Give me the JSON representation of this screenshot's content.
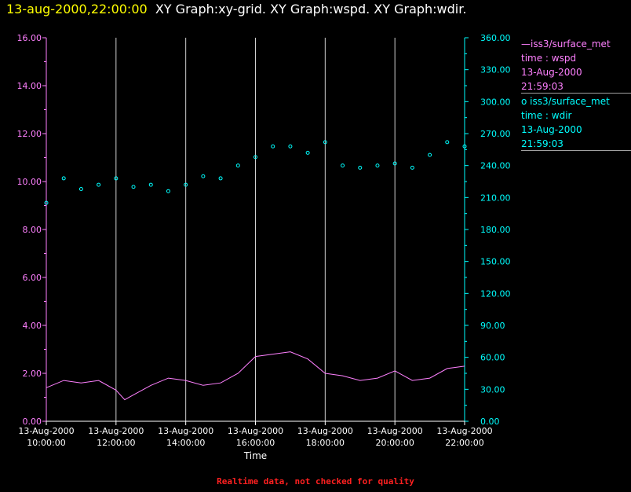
{
  "header": {
    "timestamp": "13-aug-2000,22:00:00",
    "titles": "XY Graph:xy-grid.  XY Graph:wspd.  XY Graph:wdir."
  },
  "legend": [
    {
      "marker": "—",
      "label": "iss3/surface_met",
      "axis": "time : wspd",
      "date": "13-Aug-2000",
      "time": "21:59:03",
      "color": "#ff80ff"
    },
    {
      "marker": "o",
      "label": "iss3/surface_met",
      "axis": "time : wdir",
      "date": "13-Aug-2000",
      "time": "21:59:03",
      "color": "#00ffff"
    }
  ],
  "footer": "Realtime data, not checked for quality",
  "chart_data": {
    "type": "line+scatter",
    "xlabel": "Time",
    "xlim": [
      "13-Aug-2000 10:00:00",
      "13-Aug-2000 22:00:00"
    ],
    "x_ticks": [
      {
        "date": "13-Aug-2000",
        "time": "10:00:00"
      },
      {
        "date": "13-Aug-2000",
        "time": "12:00:00"
      },
      {
        "date": "13-Aug-2000",
        "time": "14:00:00"
      },
      {
        "date": "13-Aug-2000",
        "time": "16:00:00"
      },
      {
        "date": "13-Aug-2000",
        "time": "18:00:00"
      },
      {
        "date": "13-Aug-2000",
        "time": "20:00:00"
      },
      {
        "date": "13-Aug-2000",
        "time": "22:00:00"
      }
    ],
    "grid": "vertical lines at each 2-hour tick",
    "left_axis": {
      "ylim": [
        0,
        16
      ],
      "ticks": [
        "0.00",
        "2.00",
        "4.00",
        "6.00",
        "8.00",
        "10.00",
        "12.00",
        "14.00",
        "16.00"
      ],
      "color": "#ff80ff"
    },
    "right_axis": {
      "ylim": [
        0,
        360
      ],
      "ticks": [
        "0.00",
        "30.00",
        "60.00",
        "90.00",
        "120.00",
        "150.00",
        "180.00",
        "210.00",
        "240.00",
        "270.00",
        "300.00",
        "330.00",
        "360.00"
      ],
      "color": "#00ffff"
    },
    "series": [
      {
        "name": "iss3/surface_met time : wspd",
        "style": "line",
        "axis": "left",
        "color": "#ff80ff",
        "x": [
          "10:00",
          "10:30",
          "11:00",
          "11:30",
          "12:00",
          "12:15",
          "12:30",
          "13:00",
          "13:30",
          "14:00",
          "14:30",
          "15:00",
          "15:30",
          "16:00",
          "16:30",
          "17:00",
          "17:30",
          "18:00",
          "18:30",
          "19:00",
          "19:30",
          "20:00",
          "20:30",
          "21:00",
          "21:30",
          "22:00"
        ],
        "y": [
          1.4,
          1.7,
          1.6,
          1.7,
          1.3,
          0.9,
          1.1,
          1.5,
          1.8,
          1.7,
          1.5,
          1.6,
          2.0,
          2.7,
          2.8,
          2.9,
          2.6,
          2.0,
          1.9,
          1.7,
          1.8,
          2.1,
          1.7,
          1.8,
          2.2,
          2.3
        ]
      },
      {
        "name": "iss3/surface_met time : wdir",
        "style": "scatter",
        "axis": "right",
        "color": "#00ffff",
        "x": [
          "10:00",
          "10:30",
          "11:00",
          "11:30",
          "12:00",
          "12:30",
          "13:00",
          "13:30",
          "14:00",
          "14:30",
          "15:00",
          "15:30",
          "16:00",
          "16:30",
          "17:00",
          "17:30",
          "18:00",
          "18:30",
          "19:00",
          "19:30",
          "20:00",
          "20:30",
          "21:00",
          "21:30",
          "22:00"
        ],
        "y": [
          205,
          228,
          218,
          222,
          228,
          220,
          222,
          216,
          222,
          230,
          228,
          240,
          248,
          258,
          258,
          252,
          262,
          240,
          238,
          240,
          242,
          238,
          250,
          262,
          258
        ]
      }
    ]
  }
}
